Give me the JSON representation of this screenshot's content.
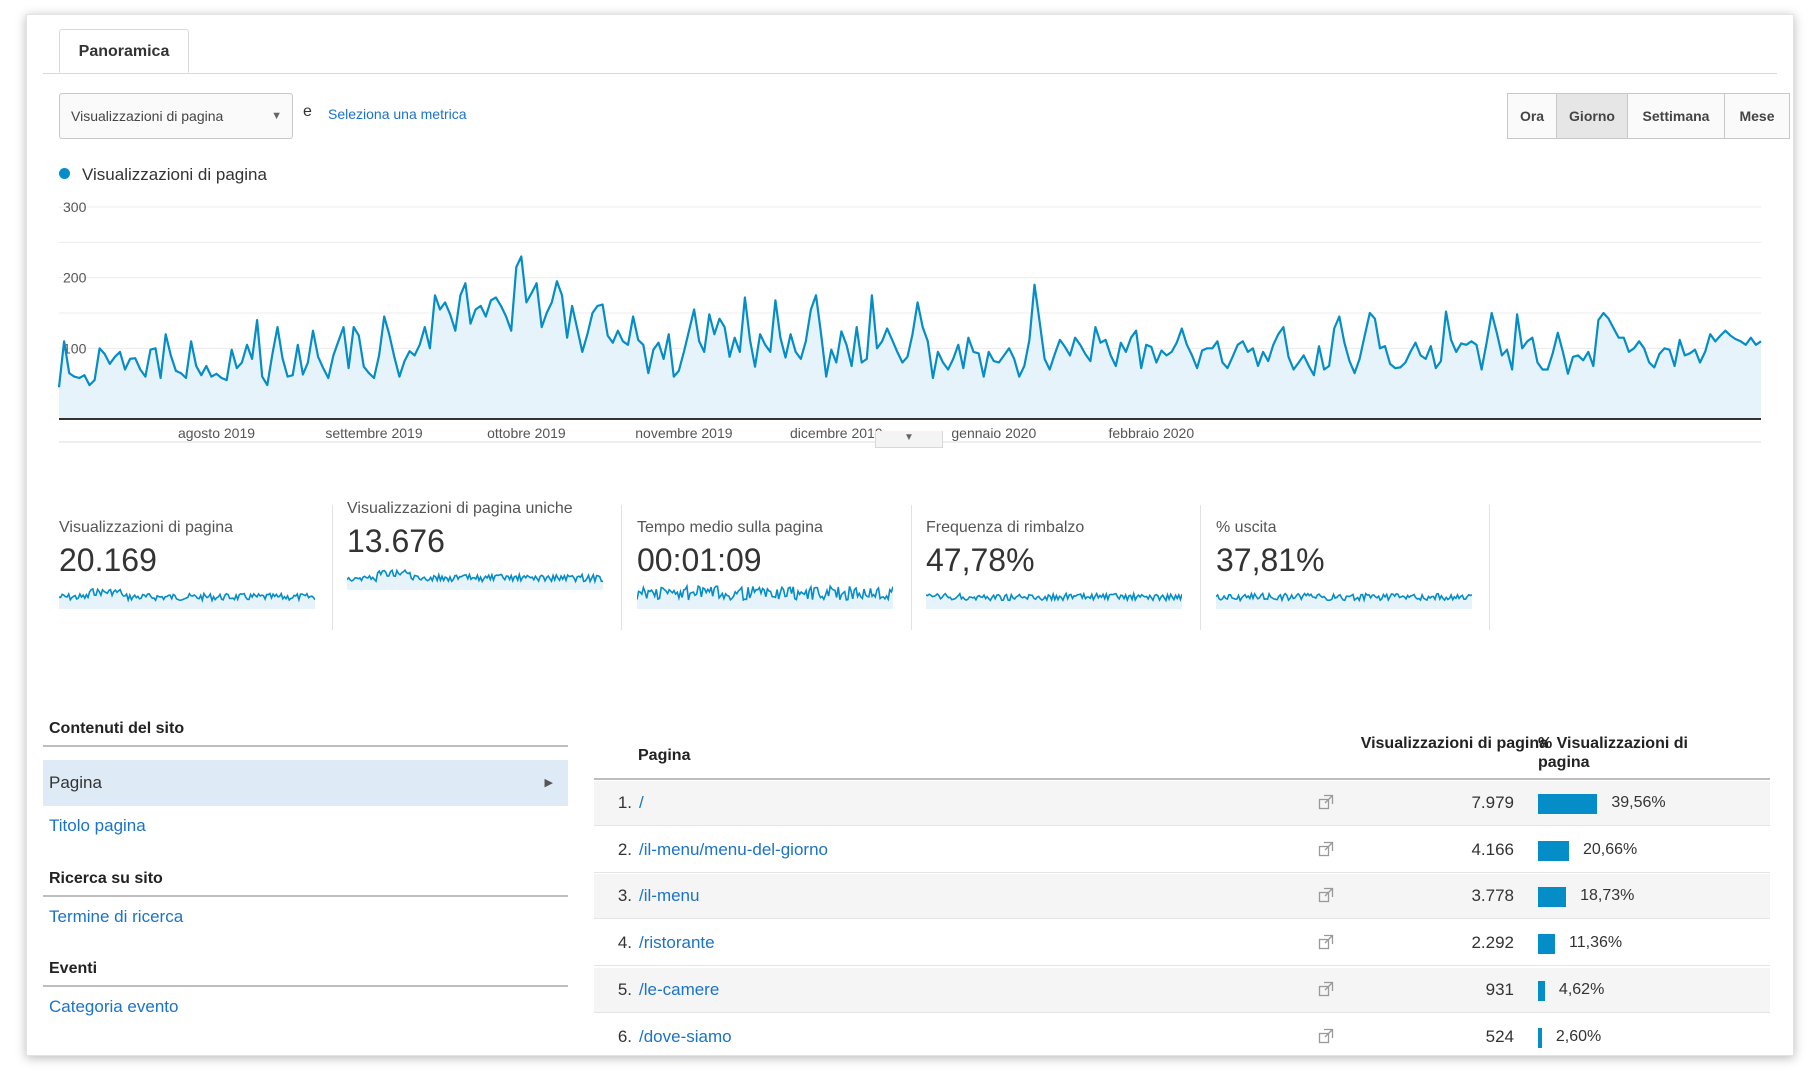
{
  "tab": {
    "label": "Panoramica"
  },
  "metric_selector": {
    "value": "Visualizzazioni di pagina",
    "and_text": "e",
    "select_metric_link": "Seleziona una metrica"
  },
  "periods": [
    {
      "label": "Ora",
      "active": false
    },
    {
      "label": "Giorno",
      "active": true
    },
    {
      "label": "Settimana",
      "active": false
    },
    {
      "label": "Mese",
      "active": false
    }
  ],
  "chart_data": {
    "type": "area",
    "series": [
      {
        "name": "Visualizzazioni di pagina",
        "color": "#058dc7",
        "values": [
          45,
          110,
          65,
          60,
          58,
          62,
          48,
          55,
          100,
          92,
          78,
          88,
          95,
          70,
          85,
          86,
          70,
          60,
          98,
          100,
          58,
          120,
          90,
          68,
          65,
          58,
          110,
          75,
          62,
          75,
          60,
          64,
          58,
          55,
          98,
          72,
          80,
          105,
          85,
          140,
          60,
          48,
          92,
          130,
          86,
          60,
          62,
          105,
          63,
          80,
          125,
          88,
          72,
          58,
          90,
          110,
          130,
          72,
          130,
          118,
          74,
          65,
          58,
          90,
          145,
          120,
          88,
          60,
          82,
          96,
          90,
          105,
          130,
          100,
          175,
          155,
          165,
          148,
          125,
          175,
          192,
          135,
          155,
          160,
          145,
          168,
          172,
          160,
          145,
          125,
          215,
          230,
          165,
          178,
          192,
          130,
          150,
          165,
          195,
          175,
          115,
          160,
          128,
          95,
          120,
          150,
          160,
          162,
          118,
          108,
          125,
          110,
          105,
          145,
          112,
          105,
          65,
          98,
          108,
          85,
          120,
          60,
          68,
          95,
          125,
          155,
          110,
          95,
          148,
          120,
          142,
          130,
          88,
          115,
          95,
          172,
          112,
          74,
          120,
          105,
          95,
          168,
          115,
          87,
          120,
          95,
          85,
          110,
          155,
          175,
          120,
          60,
          98,
          80,
          124,
          105,
          75,
          130,
          80,
          85,
          175,
          100,
          110,
          128,
          112,
          95,
          80,
          88,
          120,
          165,
          130,
          110,
          58,
          95,
          80,
          70,
          85,
          105,
          72,
          115,
          95,
          93,
          60,
          95,
          82,
          80,
          90,
          100,
          85,
          60,
          75,
          112,
          190,
          138,
          85,
          70,
          92,
          112,
          102,
          90,
          115,
          105,
          92,
          82,
          130,
          108,
          112,
          90,
          75,
          108,
          95,
          115,
          125,
          72,
          105,
          102,
          80,
          97,
          90,
          95,
          108,
          128,
          105,
          90,
          72,
          97,
          100,
          100,
          110,
          80,
          72,
          88,
          105,
          110,
          95,
          100,
          75,
          95,
          82,
          105,
          120,
          130,
          88,
          70,
          80,
          90,
          75,
          62,
          103,
          70,
          75,
          128,
          145,
          108,
          82,
          65,
          85,
          118,
          150,
          142,
          100,
          103,
          78,
          72,
          73,
          80,
          95,
          108,
          90,
          85,
          103,
          72,
          82,
          152,
          112,
          95,
          107,
          105,
          110,
          105,
          70,
          108,
          150,
          122,
          90,
          98,
          70,
          148,
          100,
          110,
          115,
          80,
          70,
          70,
          93,
          122,
          95,
          64,
          88,
          90,
          83,
          95,
          75,
          140,
          150,
          142,
          128,
          115,
          115,
          95,
          100,
          110,
          100,
          80,
          73,
          92,
          100,
          98,
          75,
          112,
          90,
          93,
          98,
          80,
          95,
          120,
          110,
          118,
          125,
          118,
          113,
          110,
          105,
          115,
          105,
          110
        ],
        "marks": [
          {
            "x": 0.0,
            "y": 45
          },
          {
            "x": 1.0,
            "y": 110
          }
        ]
      }
    ],
    "y_ticks": [
      "100",
      "200",
      "300"
    ],
    "ylim": [
      0,
      300
    ],
    "x_labels": [
      "agosto 2019",
      "settembre 2019",
      "ottobre 2019",
      "novembre 2019",
      "dicembre 2019",
      "gennaio 2020",
      "febbraio 2020"
    ],
    "grid": true
  },
  "scorecards": [
    {
      "label": "Visualizzazioni di pagina",
      "value": "20.169"
    },
    {
      "label": "Visualizzazioni di pagina uniche",
      "value": "13.676"
    },
    {
      "label": "Tempo medio sulla pagina",
      "value": "00:01:09"
    },
    {
      "label": "Frequenza di rimbalzo",
      "value": "47,78%"
    },
    {
      "label": "% uscita",
      "value": "37,81%"
    }
  ],
  "sidebar": {
    "sections": [
      {
        "title": "Contenuti del sito",
        "items": [
          "Pagina",
          "Titolo pagina"
        ]
      },
      {
        "title": "Ricerca su sito",
        "items": [
          "Termine di ricerca"
        ]
      },
      {
        "title": "Eventi",
        "items": [
          "Categoria evento"
        ]
      }
    ]
  },
  "table": {
    "headers": {
      "page": "Pagina",
      "views": "Visualizzazioni di pagina",
      "pct": "% Visualizzazioni di pagina"
    },
    "rows": [
      {
        "num": "1.",
        "path": "/",
        "views": "7.979",
        "pct": "39,56%",
        "fraction": 0.3956
      },
      {
        "num": "2.",
        "path": "/il-menu/menu-del-giorno",
        "views": "4.166",
        "pct": "20,66%",
        "fraction": 0.2066
      },
      {
        "num": "3.",
        "path": "/il-menu",
        "views": "3.778",
        "pct": "18,73%",
        "fraction": 0.1873
      },
      {
        "num": "4.",
        "path": "/ristorante",
        "views": "2.292",
        "pct": "11,36%",
        "fraction": 0.1136
      },
      {
        "num": "5.",
        "path": "/le-camere",
        "views": "931",
        "pct": "4,62%",
        "fraction": 0.0462
      },
      {
        "num": "6.",
        "path": "/dove-siamo",
        "views": "524",
        "pct": "2,60%",
        "fraction": 0.026
      }
    ]
  }
}
